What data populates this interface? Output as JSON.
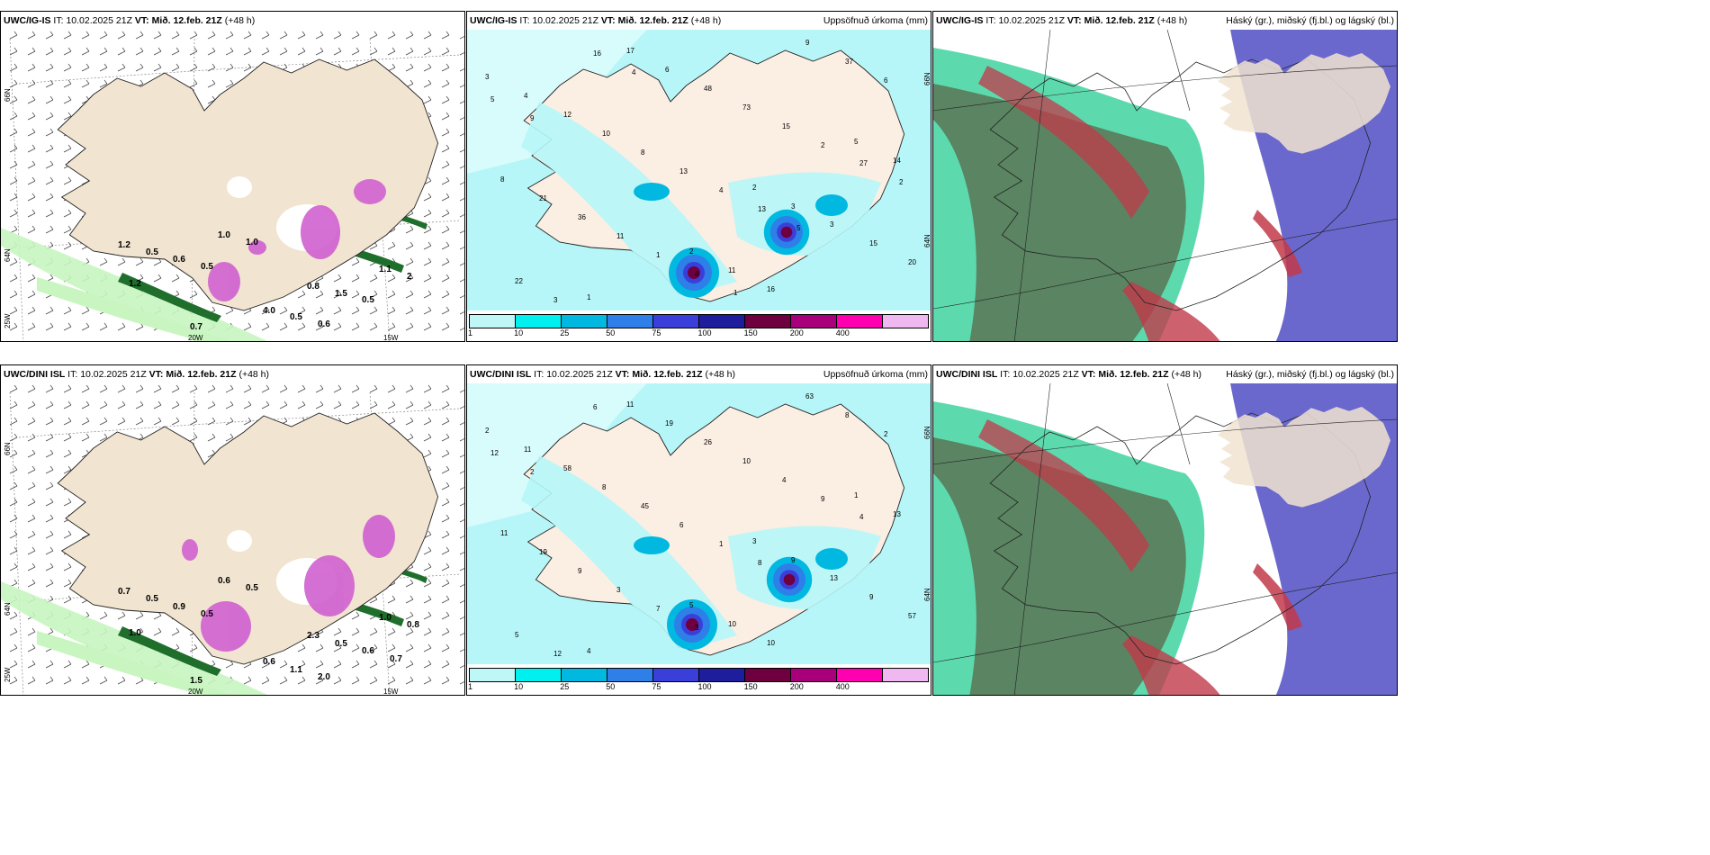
{
  "panels": [
    {
      "id": "p1",
      "model": "UWC/IG-IS",
      "it_label": "IT:",
      "issue": "10.02.2025 21Z",
      "vt_label": "VT:",
      "valid": "Mið. 12.feb. 21Z",
      "lead": "(+48 h)",
      "field": "",
      "type": "wind",
      "lat_labels": [
        "66N",
        "64N"
      ],
      "lon_labels": [
        "20W",
        "15W",
        "25W"
      ],
      "values": [
        "1.2",
        "0.8",
        "0.7",
        "1.1",
        "4.0",
        "0.5",
        "1.5",
        "1.0",
        "2",
        "0.5",
        "0.6",
        "0.5",
        "1.0",
        "1.2",
        "0.6",
        "0.5"
      ]
    },
    {
      "id": "p2",
      "model": "UWC/IG-IS",
      "it_label": "IT:",
      "issue": "10.02.2025 21Z",
      "vt_label": "VT:",
      "valid": "Mið. 12.feb. 21Z",
      "lead": "(+48 h)",
      "field": "Uppsöfnuð úrkoma (mm)",
      "type": "precip",
      "lat_labels": [
        "66N",
        "64N"
      ],
      "values": [
        "3",
        "2",
        "1",
        "5",
        "2",
        "4",
        "3",
        "17",
        "14",
        "11",
        "12",
        "3",
        "6",
        "8",
        "16",
        "10",
        "15",
        "48",
        "21",
        "9",
        "8",
        "20",
        "73",
        "36",
        "37",
        "13",
        "22",
        "15",
        "11",
        "6",
        "4",
        "3",
        "2",
        "1",
        "5",
        "13",
        "16",
        "27",
        "8",
        "9",
        "5",
        "4",
        "2",
        "1"
      ]
    },
    {
      "id": "p3",
      "model": "UWC/IG-IS",
      "it_label": "IT:",
      "issue": "10.02.2025 21Z",
      "vt_label": "VT:",
      "valid": "Mið. 12.feb. 21Z",
      "lead": "(+48 h)",
      "field": "Háský (gr.), miðský (fj.bl.) og lágský (bl.)",
      "type": "cloud"
    },
    {
      "id": "p4",
      "model": "UWC/DINI ISL",
      "it_label": "IT:",
      "issue": "10.02.2025 21Z",
      "vt_label": "VT:",
      "valid": "Mið. 12.feb. 21Z",
      "lead": "(+48 h)",
      "field": "",
      "type": "wind",
      "lat_labels": [
        "66N",
        "64N"
      ],
      "lon_labels": [
        "20W",
        "15W",
        "25W"
      ],
      "values": [
        "0.7",
        "2.3",
        "1.5",
        "1.0",
        "0.6",
        "0.5",
        "0.5",
        "0.6",
        "0.8",
        "1.1",
        "0.9",
        "0.6",
        "0.5",
        "1.0",
        "2.0",
        "0.5",
        "0.7"
      ]
    },
    {
      "id": "p5",
      "model": "UWC/DINI ISL",
      "it_label": "IT:",
      "issue": "10.02.2025 21Z",
      "vt_label": "VT:",
      "valid": "Mið. 12.feb. 21Z",
      "lead": "(+48 h)",
      "field": "Uppsöfnuð úrkoma (mm)",
      "type": "precip",
      "lat_labels": [
        "66N",
        "64N"
      ],
      "values": [
        "2",
        "3",
        "4",
        "1",
        "5",
        "11",
        "9",
        "11",
        "13",
        "10",
        "58",
        "13",
        "19",
        "11",
        "10",
        "8",
        "9",
        "26",
        "19",
        "63",
        "45",
        "57",
        "10",
        "9",
        "8",
        "6",
        "5",
        "4",
        "3",
        "2",
        "1",
        "12",
        "9",
        "7",
        "12",
        "8",
        "6",
        "4",
        "3",
        "2"
      ]
    },
    {
      "id": "p6",
      "model": "UWC/DINI ISL",
      "it_label": "IT:",
      "issue": "10.02.2025 21Z",
      "vt_label": "VT:",
      "valid": "Mið. 12.feb. 21Z",
      "lead": "(+48 h)",
      "field": "Háský (gr.), miðský (fj.bl.) og lágský (bl.)",
      "type": "cloud"
    }
  ],
  "precip_legend": {
    "labels": [
      "1",
      "10",
      "25",
      "50",
      "75",
      "100",
      "150",
      "200",
      "400"
    ],
    "colors": [
      "#bff7f7",
      "#00f0f0",
      "#00b8e0",
      "#2e7fe8",
      "#3b3fd9",
      "#1e1e9c",
      "#6e0040",
      "#a8007a",
      "#ff00b0",
      "#f0b8f0"
    ]
  },
  "colors": {
    "land": "#f1e4d0",
    "land_precip": "#fbeee3",
    "sea_precip": "#b6f6f8",
    "wind_green_light": "#c8f5c0",
    "wind_green_dark": "#1f6e2c",
    "wind_magenta": "#d060d0",
    "cloud_high": "#5a7a5a",
    "cloud_mid": "#3fd3a0",
    "cloud_low": "#5a58c8",
    "cloud_red": "#c23a4a"
  }
}
